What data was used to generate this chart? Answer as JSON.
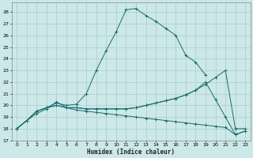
{
  "title": "",
  "xlabel": "Humidex (Indice chaleur)",
  "ylabel": "",
  "bg_color": "#cce8e8",
  "grid_color": "#aacccc",
  "line_color": "#1a6b6b",
  "xlim": [
    -0.5,
    23.5
  ],
  "ylim": [
    17,
    28.8
  ],
  "yticks": [
    17,
    18,
    19,
    20,
    21,
    22,
    23,
    24,
    25,
    26,
    27,
    28
  ],
  "xticks": [
    0,
    1,
    2,
    3,
    4,
    5,
    6,
    7,
    8,
    9,
    10,
    11,
    12,
    13,
    14,
    15,
    16,
    17,
    18,
    19,
    20,
    21,
    22,
    23
  ],
  "lines": [
    {
      "x": [
        0,
        1,
        2,
        3,
        4,
        5,
        6,
        7,
        8,
        9,
        10,
        11,
        12,
        13,
        14,
        15,
        16,
        17,
        18,
        19
      ],
      "y": [
        18,
        18.7,
        19.5,
        19.8,
        20.2,
        20.0,
        20.1,
        21.0,
        23.0,
        24.7,
        26.3,
        28.2,
        28.3,
        27.7,
        27.2,
        26.6,
        26.0,
        24.3,
        23.7,
        22.6
      ]
    },
    {
      "x": [
        0,
        1,
        2,
        3,
        4,
        5,
        6,
        7,
        8,
        9,
        10,
        11,
        12,
        13,
        14,
        15,
        16,
        17,
        18,
        19,
        20,
        21,
        22,
        23
      ],
      "y": [
        18,
        18.7,
        19.5,
        19.8,
        20.0,
        19.8,
        19.8,
        19.7,
        19.7,
        19.7,
        19.7,
        19.7,
        19.8,
        20.0,
        20.2,
        20.4,
        20.6,
        20.9,
        21.3,
        21.8,
        22.4,
        23.0,
        18.0,
        18.0
      ]
    },
    {
      "x": [
        0,
        1,
        2,
        3,
        4,
        5,
        6,
        7,
        8,
        9,
        10,
        11,
        12,
        13,
        14,
        15,
        16,
        17,
        18,
        19,
        20,
        21,
        22,
        23
      ],
      "y": [
        18,
        18.7,
        19.5,
        19.8,
        20.0,
        19.8,
        19.8,
        19.7,
        19.7,
        19.7,
        19.7,
        19.7,
        19.8,
        20.0,
        20.2,
        20.4,
        20.6,
        20.9,
        21.3,
        22.0,
        20.5,
        19.0,
        17.5,
        17.8
      ]
    },
    {
      "x": [
        0,
        1,
        2,
        3,
        4,
        5,
        6,
        7,
        8,
        9,
        10,
        11,
        12,
        13,
        14,
        15,
        16,
        17,
        18,
        19,
        20,
        21,
        22,
        23
      ],
      "y": [
        18,
        18.7,
        19.3,
        19.7,
        20.3,
        19.8,
        19.6,
        19.5,
        19.4,
        19.3,
        19.2,
        19.1,
        19.0,
        18.9,
        18.8,
        18.7,
        18.6,
        18.5,
        18.4,
        18.3,
        18.2,
        18.1,
        17.5,
        17.8
      ]
    }
  ]
}
